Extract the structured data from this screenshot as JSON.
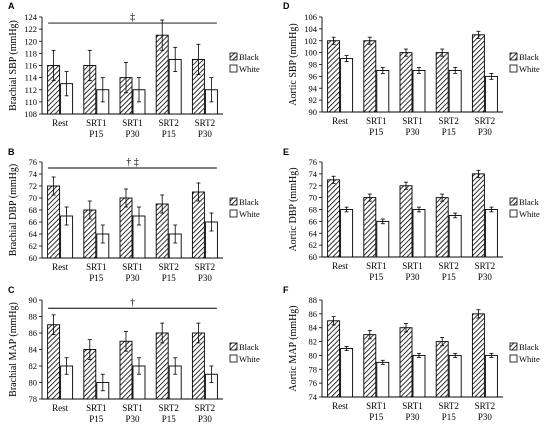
{
  "chart_data": [
    {
      "type": "bar",
      "panel": "A",
      "ylabel": "Brachial SBP (mmHg)",
      "categories": [
        [
          "Rest"
        ],
        [
          "SRT1",
          "P15"
        ],
        [
          "SRT1",
          "P30"
        ],
        [
          "SRT2",
          "P15"
        ],
        [
          "SRT2",
          "P30"
        ]
      ],
      "ylim": [
        108,
        124
      ],
      "ystep": 2,
      "series": [
        {
          "name": "Black",
          "values": [
            116,
            116,
            114,
            121,
            117
          ],
          "errors": [
            2.5,
            2.5,
            2.5,
            2.5,
            2.5
          ]
        },
        {
          "name": "White",
          "values": [
            113,
            112,
            112,
            117,
            112
          ],
          "errors": [
            2,
            2,
            2,
            2,
            2
          ]
        }
      ],
      "significance": {
        "label": "‡",
        "color": "#1a5a8a",
        "y": 123,
        "from": 0,
        "to": 4
      }
    },
    {
      "type": "bar",
      "panel": "B",
      "ylabel": "Brachial DBP (mmHg)",
      "categories": [
        [
          "Rest"
        ],
        [
          "SRT1",
          "P15"
        ],
        [
          "SRT1",
          "P30"
        ],
        [
          "SRT2",
          "P15"
        ],
        [
          "SRT2",
          "P30"
        ]
      ],
      "ylim": [
        60,
        76
      ],
      "ystep": 2,
      "series": [
        {
          "name": "Black",
          "values": [
            72,
            68,
            70,
            69,
            71
          ],
          "errors": [
            1.5,
            1.5,
            1.5,
            1.5,
            1.5
          ]
        },
        {
          "name": "White",
          "values": [
            67,
            64,
            67,
            64,
            66
          ],
          "errors": [
            1.5,
            1.5,
            1.5,
            1.5,
            1.5
          ]
        }
      ],
      "significance": {
        "label": "† ‡",
        "color": "#000000",
        "y": 75,
        "from": 0,
        "to": 4
      }
    },
    {
      "type": "bar",
      "panel": "C",
      "ylabel": "Brachial MAP (mmHg)",
      "categories": [
        [
          "Rest"
        ],
        [
          "SRT1",
          "P15"
        ],
        [
          "SRT1",
          "P30"
        ],
        [
          "SRT2",
          "P15"
        ],
        [
          "SRT2",
          "P30"
        ]
      ],
      "ylim": [
        78,
        90
      ],
      "ystep": 2,
      "series": [
        {
          "name": "Black",
          "values": [
            87,
            84,
            85,
            86,
            86
          ],
          "errors": [
            1.2,
            1.2,
            1.2,
            1.2,
            1.2
          ]
        },
        {
          "name": "White",
          "values": [
            82,
            80,
            82,
            82,
            81
          ],
          "errors": [
            1,
            1,
            1,
            1,
            1
          ]
        }
      ],
      "significance": {
        "label": "†",
        "color": "#000000",
        "y": 89,
        "from": 0,
        "to": 4
      }
    },
    {
      "type": "bar",
      "panel": "D",
      "ylabel": "Aortic SBP (mmHg)",
      "categories": [
        [
          "Rest"
        ],
        [
          "SRT1",
          "P15"
        ],
        [
          "SRT1",
          "P30"
        ],
        [
          "SRT2",
          "P15"
        ],
        [
          "SRT2",
          "P30"
        ]
      ],
      "ylim": [
        90,
        106
      ],
      "ystep": 2,
      "series": [
        {
          "name": "Black",
          "values": [
            102,
            102,
            100,
            100,
            103
          ],
          "errors": [
            0.6,
            0.6,
            0.6,
            0.6,
            0.6
          ]
        },
        {
          "name": "White",
          "values": [
            99,
            97,
            97,
            97,
            96
          ],
          "errors": [
            0.5,
            0.5,
            0.5,
            0.5,
            0.5
          ]
        }
      ]
    },
    {
      "type": "bar",
      "panel": "E",
      "ylabel": "Aortic DBP (mmHg)",
      "categories": [
        [
          "Rest"
        ],
        [
          "SRT1",
          "P15"
        ],
        [
          "SRT1",
          "P30"
        ],
        [
          "SRT2",
          "P15"
        ],
        [
          "SRT2",
          "P30"
        ]
      ],
      "ylim": [
        60,
        76
      ],
      "ystep": 2,
      "series": [
        {
          "name": "Black",
          "values": [
            73,
            70,
            72,
            70,
            74
          ],
          "errors": [
            0.6,
            0.6,
            0.6,
            0.6,
            0.6
          ]
        },
        {
          "name": "White",
          "values": [
            68,
            66,
            68,
            67,
            68
          ],
          "errors": [
            0.4,
            0.4,
            0.4,
            0.4,
            0.4
          ]
        }
      ]
    },
    {
      "type": "bar",
      "panel": "F",
      "ylabel": "Aortic MAP (mmHg)",
      "categories": [
        [
          "Rest"
        ],
        [
          "SRT1",
          "P15"
        ],
        [
          "SRT1",
          "P30"
        ],
        [
          "SRT2",
          "P15"
        ],
        [
          "SRT2",
          "P30"
        ]
      ],
      "ylim": [
        74,
        88
      ],
      "ystep": 2,
      "series": [
        {
          "name": "Black",
          "values": [
            85,
            83,
            84,
            82,
            86
          ],
          "errors": [
            0.6,
            0.6,
            0.6,
            0.6,
            0.6
          ]
        },
        {
          "name": "White",
          "values": [
            81,
            79,
            80,
            80,
            80
          ],
          "errors": [
            0.3,
            0.3,
            0.3,
            0.3,
            0.3
          ]
        }
      ]
    }
  ]
}
